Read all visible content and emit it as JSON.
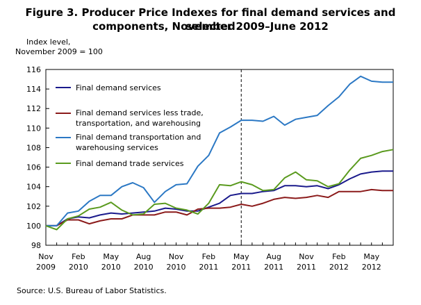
{
  "chart_data": {
    "type": "line",
    "title_line1": "Figure 3. Producer Price Indexes for final demand services and selected",
    "title_line2": "components, November 2009–June 2012",
    "ylabel_line1": "Index level,",
    "ylabel_line2": "November 2009 = 100",
    "source": "Source: U.S. Bureau of Labor Statistics.",
    "ylim": [
      98,
      116
    ],
    "yticks": [
      "98",
      "100",
      "102",
      "104",
      "106",
      "108",
      "110",
      "112",
      "114",
      "116"
    ],
    "xticks": [
      {
        "month": "Nov",
        "year": "2009",
        "index": 0
      },
      {
        "month": "Feb",
        "year": "2010",
        "index": 3
      },
      {
        "month": "May",
        "year": "2010",
        "index": 6
      },
      {
        "month": "Aug",
        "year": "2010",
        "index": 9
      },
      {
        "month": "Nov",
        "year": "2010",
        "index": 12
      },
      {
        "month": "Feb",
        "year": "2011",
        "index": 15
      },
      {
        "month": "May",
        "year": "2011",
        "index": 18
      },
      {
        "month": "Aug",
        "year": "2011",
        "index": 21
      },
      {
        "month": "Nov",
        "year": "2011",
        "index": 24
      },
      {
        "month": "Feb",
        "year": "2012",
        "index": 27
      },
      {
        "month": "May",
        "year": "2012",
        "index": 30
      }
    ],
    "reference_line_index": 18,
    "grid": false,
    "legend": "top-left",
    "series": [
      {
        "name": "Final demand services",
        "color": "#1a1a8c",
        "values": [
          100.0,
          100.0,
          100.7,
          100.9,
          100.8,
          101.1,
          101.3,
          101.2,
          101.3,
          101.4,
          101.5,
          101.8,
          101.7,
          101.5,
          101.5,
          101.9,
          102.3,
          103.1,
          103.3,
          103.3,
          103.5,
          103.6,
          104.1,
          104.1,
          104.0,
          104.1,
          103.8,
          104.2,
          104.8,
          105.3,
          105.5,
          105.6,
          105.6
        ]
      },
      {
        "name": "Final demand services less trade, transportation, and warehousing",
        "color": "#8b1a1a",
        "values": [
          100.0,
          100.0,
          100.6,
          100.6,
          100.2,
          100.5,
          100.7,
          100.7,
          101.1,
          101.1,
          101.1,
          101.4,
          101.4,
          101.1,
          101.7,
          101.8,
          101.8,
          101.9,
          102.2,
          102.0,
          102.3,
          102.7,
          102.9,
          102.8,
          102.9,
          103.1,
          102.9,
          103.5,
          103.5,
          103.5,
          103.7,
          103.6,
          103.6
        ]
      },
      {
        "name": "Final demand transportation and warehousing services",
        "color": "#2b78c4",
        "values": [
          100.0,
          100.0,
          101.3,
          101.5,
          102.5,
          103.1,
          103.1,
          104.0,
          104.4,
          103.9,
          102.4,
          103.5,
          104.2,
          104.3,
          106.1,
          107.2,
          109.5,
          110.1,
          110.8,
          110.8,
          110.7,
          111.2,
          110.3,
          110.9,
          111.1,
          111.3,
          112.3,
          113.2,
          114.5,
          115.3,
          114.8,
          114.7,
          114.7
        ]
      },
      {
        "name": "Final demand trade services",
        "color": "#5a9a1e",
        "values": [
          100.0,
          99.6,
          100.7,
          101.0,
          101.7,
          101.9,
          102.4,
          101.6,
          101.1,
          101.2,
          102.2,
          102.3,
          101.8,
          101.6,
          101.2,
          102.3,
          104.2,
          104.1,
          104.5,
          104.2,
          103.6,
          103.7,
          104.9,
          105.5,
          104.7,
          104.6,
          104.0,
          104.3,
          105.7,
          106.9,
          107.2,
          107.6,
          107.8
        ]
      }
    ],
    "legend_labels": {
      "s1": "Final demand services",
      "s2_line1": "Final demand services less trade,",
      "s2_line2": "transportation, and warehousing",
      "s3_line1": "Final demand transportation and",
      "s3_line2": "warehousing services",
      "s4": "Final demand trade services"
    }
  }
}
